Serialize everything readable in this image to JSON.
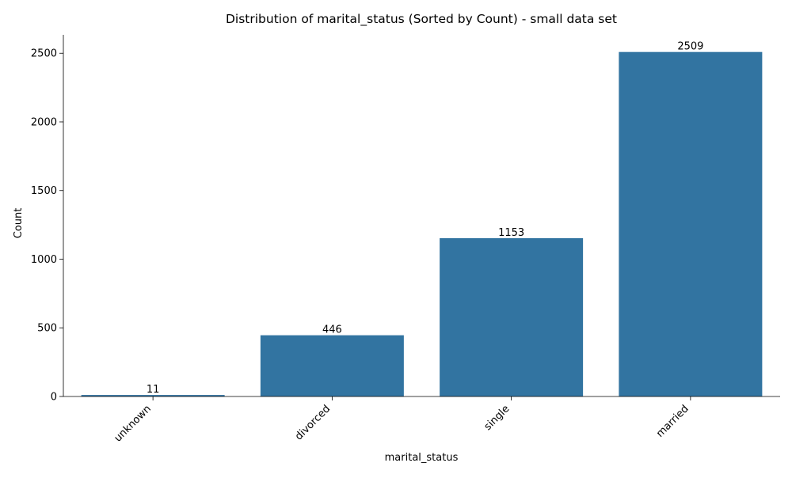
{
  "chart_data": {
    "type": "bar",
    "title": "Distribution of marital_status (Sorted by Count) - small data set",
    "xlabel": "marital_status",
    "ylabel": "Count",
    "categories": [
      "unknown",
      "divorced",
      "single",
      "married"
    ],
    "values": [
      11,
      446,
      1153,
      2509
    ],
    "data_labels": [
      "11",
      "446",
      "1153",
      "2509"
    ],
    "yticks": [
      0,
      500,
      1000,
      1500,
      2000,
      2500
    ],
    "ylim": [
      0,
      2634
    ],
    "grid": false,
    "legend": "none",
    "bar_color": "#3274a1"
  }
}
